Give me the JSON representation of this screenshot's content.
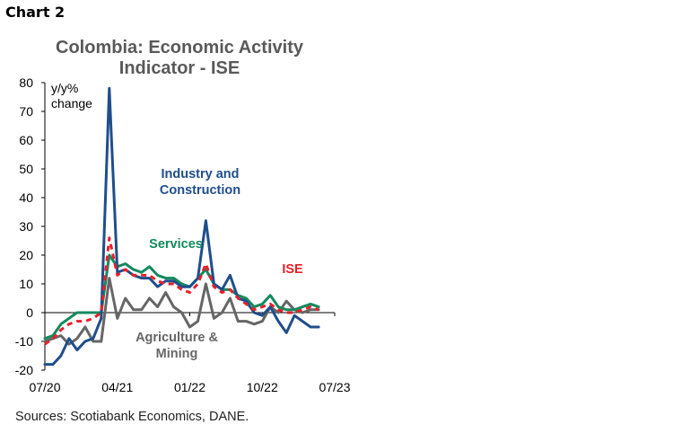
{
  "header": {
    "chart_label": "Chart 2"
  },
  "title_lines": [
    "Colombia: Economic Activity",
    "Indicator - ISE"
  ],
  "source": "Sources: Scotiabank Economics, DANE.",
  "colors": {
    "industry": "#1f4e8c",
    "services": "#138a5e",
    "ise": "#e8202a",
    "agriculture": "#666666"
  },
  "chart_data": {
    "type": "line",
    "unit_label": [
      "y/y%",
      "change"
    ],
    "ylim": [
      -20,
      80
    ],
    "yticks": [
      80,
      70,
      60,
      50,
      40,
      30,
      20,
      10,
      0,
      -10,
      -20
    ],
    "xlim": [
      "2020-07",
      "2023-07"
    ],
    "xticks": [
      "07/20",
      "04/21",
      "01/22",
      "10/22",
      "07/23"
    ],
    "legend": "inline",
    "x": [
      "2020-07",
      "2020-08",
      "2020-09",
      "2020-10",
      "2020-11",
      "2020-12",
      "2021-01",
      "2021-02",
      "2021-03",
      "2021-04",
      "2021-05",
      "2021-06",
      "2021-07",
      "2021-08",
      "2021-09",
      "2021-10",
      "2021-11",
      "2021-12",
      "2022-01",
      "2022-02",
      "2022-03",
      "2022-04",
      "2022-05",
      "2022-06",
      "2022-07",
      "2022-08",
      "2022-09",
      "2022-10",
      "2022-11",
      "2022-12",
      "2023-01",
      "2023-02",
      "2023-03",
      "2023-04",
      "2023-05",
      "2023-06",
      "2023-07"
    ],
    "series": [
      {
        "name": "Industry and Construction",
        "key": "industry",
        "dash": false,
        "values": [
          -18,
          -18,
          -15,
          -9,
          -13,
          -10,
          -9,
          -2,
          78,
          14,
          15,
          13,
          12,
          12,
          9,
          11,
          11,
          9,
          9,
          12,
          32,
          10,
          8,
          13,
          5,
          4,
          0,
          -1,
          2,
          -3,
          -7,
          -1,
          -3,
          -5,
          -5,
          null,
          null
        ]
      },
      {
        "name": "Services",
        "key": "services",
        "dash": false,
        "values": [
          -9,
          -8,
          -4,
          -2,
          0,
          0,
          0,
          0,
          20,
          16,
          17,
          15,
          14,
          16,
          13,
          12,
          12,
          10,
          9,
          12,
          15,
          10,
          8,
          8,
          6,
          5,
          2,
          3,
          6,
          2,
          1,
          1,
          2,
          3,
          2,
          null,
          null
        ]
      },
      {
        "name": "ISE",
        "key": "ise",
        "dash": true,
        "values": [
          -11,
          -9,
          -6,
          -4,
          -3,
          -3,
          -2,
          0,
          26,
          13,
          15,
          13,
          13,
          13,
          11,
          10,
          10,
          8,
          7,
          10,
          17,
          9,
          7,
          8,
          5,
          3,
          1,
          2,
          3,
          1,
          0,
          0,
          1,
          2,
          1,
          null,
          null
        ]
      },
      {
        "name": "Agriculture & Mining",
        "key": "agriculture",
        "dash": false,
        "values": [
          -10,
          -9,
          -8,
          -11,
          -9,
          -5,
          -10,
          -10,
          12,
          -2,
          5,
          1,
          1,
          5,
          2,
          7,
          2,
          0,
          -5,
          -3,
          10,
          -2,
          0,
          5,
          -3,
          -3,
          -4,
          -3,
          2,
          0,
          4,
          1,
          0,
          1,
          1,
          null,
          null
        ]
      }
    ],
    "annotations": [
      {
        "text": [
          "Industry and",
          "Construction"
        ],
        "color_key": "industry"
      },
      {
        "text": [
          "Services"
        ],
        "color_key": "services"
      },
      {
        "text": [
          "ISE"
        ],
        "color_key": "ise"
      },
      {
        "text": [
          "Agriculture &",
          "Mining"
        ],
        "color_key": "agriculture"
      }
    ]
  }
}
